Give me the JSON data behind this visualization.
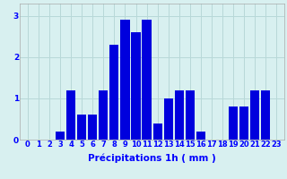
{
  "hours": [
    0,
    1,
    2,
    3,
    4,
    5,
    6,
    7,
    8,
    9,
    10,
    11,
    12,
    13,
    14,
    15,
    16,
    17,
    18,
    19,
    20,
    21,
    22,
    23
  ],
  "values": [
    0,
    0,
    0,
    0.2,
    1.2,
    0.6,
    0.6,
    1.2,
    2.3,
    2.9,
    2.6,
    2.9,
    0.4,
    1.0,
    1.2,
    1.2,
    0.2,
    0,
    0,
    0.8,
    0.8,
    1.2,
    1.2,
    0
  ],
  "bar_color": "#0000dd",
  "background_color": "#d8f0f0",
  "grid_color": "#b8d8d8",
  "xlabel": "Précipitations 1h ( mm )",
  "ylim": [
    0,
    3.3
  ],
  "yticks": [
    0,
    1,
    2,
    3
  ],
  "xlabel_fontsize": 7.5,
  "tick_fontsize": 6.0,
  "bar_width": 0.85
}
